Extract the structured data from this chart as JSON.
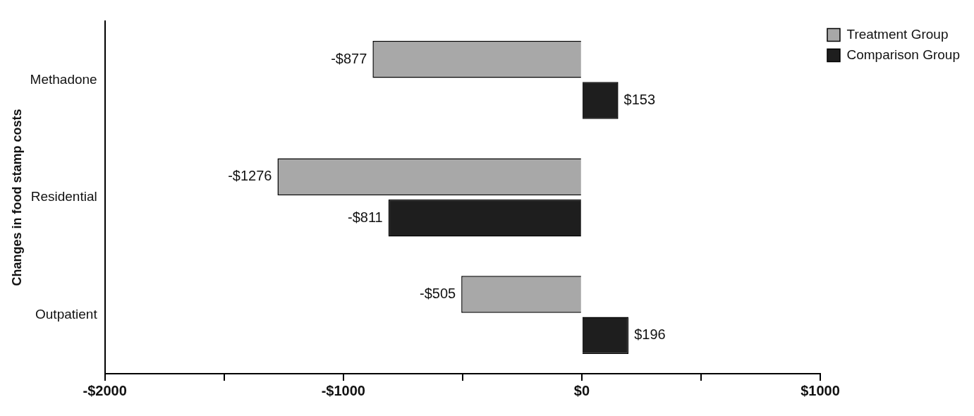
{
  "chart_data": {
    "type": "bar",
    "orientation": "horizontal",
    "ylabel": "Changes in food stamp costs",
    "categories": [
      "Methadone",
      "Residential",
      "Outpatient"
    ],
    "series": [
      {
        "name": "Treatment Group",
        "color": "#a8a8a8",
        "values": [
          -877,
          -1276,
          -505
        ],
        "value_labels": [
          "-$877",
          "-$1276",
          "-$505"
        ]
      },
      {
        "name": "Comparison Group",
        "color": "#1e1e1e",
        "values": [
          153,
          -811,
          196
        ],
        "value_labels": [
          "$153",
          "-$811",
          "$196"
        ]
      }
    ],
    "xlim": [
      -2000,
      1000
    ],
    "xticks": [
      {
        "value": -2000,
        "label": "-$2000"
      },
      {
        "value": -1500,
        "label": null
      },
      {
        "value": -1000,
        "label": "-$1000"
      },
      {
        "value": -500,
        "label": null
      },
      {
        "value": 0,
        "label": "$0"
      },
      {
        "value": 500,
        "label": null
      },
      {
        "value": 1000,
        "label": "$1000"
      }
    ],
    "grid": false,
    "legend": "top right"
  }
}
